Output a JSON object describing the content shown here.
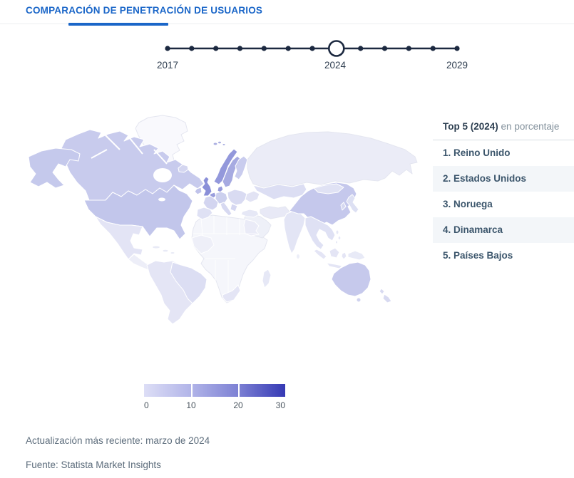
{
  "header": {
    "title": "COMPARACIÓN DE PENETRACIÓN DE USUARIOS",
    "accent_color": "#1a66c8"
  },
  "timeline": {
    "start_year": "2017",
    "selected_year": "2024",
    "end_year": "2029",
    "dot_count": 13,
    "selected_index": 7,
    "dot_color": "#1c2940"
  },
  "top5": {
    "title": "Top 5 (2024)",
    "subtitle": "en porcentaje",
    "items": [
      "1. Reino Unido",
      "2. Estados Unidos",
      "3. Noruega",
      "4. Dinamarca",
      "5. Países Bajos"
    ]
  },
  "legend": {
    "ticks": [
      "0",
      "10",
      "20",
      "30"
    ],
    "gradient": [
      "#dddef6",
      "#b1b4e8",
      "#7d81d4",
      "#3539b4"
    ]
  },
  "footer": {
    "updated": "Actualización más reciente: marzo de 2024",
    "source": "Fuente: Statista Market Insights"
  },
  "chart_data": {
    "type": "heatmap",
    "subtype": "choropleth_world_map",
    "title": "Comparación de penetración de usuarios",
    "unit": "porcentaje",
    "timeline_years": [
      2017,
      2029
    ],
    "selected_year": 2024,
    "colorbar": {
      "min": 0,
      "max": 30,
      "ticks": [
        0,
        10,
        20,
        30
      ]
    },
    "top5_ranking": [
      "Reino Unido",
      "Estados Unidos",
      "Noruega",
      "Dinamarca",
      "Países Bajos"
    ],
    "legend_position": "bottom-left",
    "source": "Statista Market Insights",
    "last_update": "marzo de 2024"
  },
  "map": {
    "region_colors": {
      "greenland": "#f9f9fd",
      "canada": "#c8cbed",
      "alaska": "#c5c9ec",
      "usa": "#c2c6eb",
      "mexico": "#e3e4f5",
      "centralamerica": "#edeef8",
      "caribbean": "#e8eaf6",
      "southamerica": "#e4e5f5",
      "brazil": "#dcdef3",
      "iceland": "#d4d6f0",
      "ireland": "#c0c3ea",
      "uk": "#8a8fd8",
      "norway": "#9398db",
      "sweden": "#a6aae1",
      "finland": "#c9ccee",
      "svalbard": "#abafe1",
      "denmark": "#9599db",
      "benelux": "#9a9edd",
      "germany": "#ccd0ee",
      "france": "#d3d5f0",
      "iberia": "#dfe1f4",
      "italy": "#d7d9f1",
      "easterneurope": "#d9dbf2",
      "ukraine": "#e2e3f4",
      "balkans": "#d5d7f1",
      "turkey": "#e6e8f6",
      "russia": "#ebecf7",
      "kazakhstan": "#dcdef3",
      "middleeast": "#eef0f8",
      "iran": "#e8e9f6",
      "india": "#e3e5f5",
      "srilanka": "#eceef8",
      "china": "#c5c8ec",
      "mongolia": "#e0e2f4",
      "korea": "#d5d8f1",
      "japan": "#dde0f3",
      "seasia": "#dfe1f4",
      "philippines": "#e6e8f6",
      "indonesia": "#e4e5f5",
      "newguinea": "#e8eaf7",
      "australia": "#c6c9ec",
      "tasmania": "#d0d3ef",
      "newzealand": "#d8daf1",
      "africa": "#f5f6fb",
      "westafrica": "#eeeff8",
      "egypt": "#eaebf7",
      "southafrica": "#e4e5f5",
      "madagascar": "#e6e8f6"
    }
  }
}
